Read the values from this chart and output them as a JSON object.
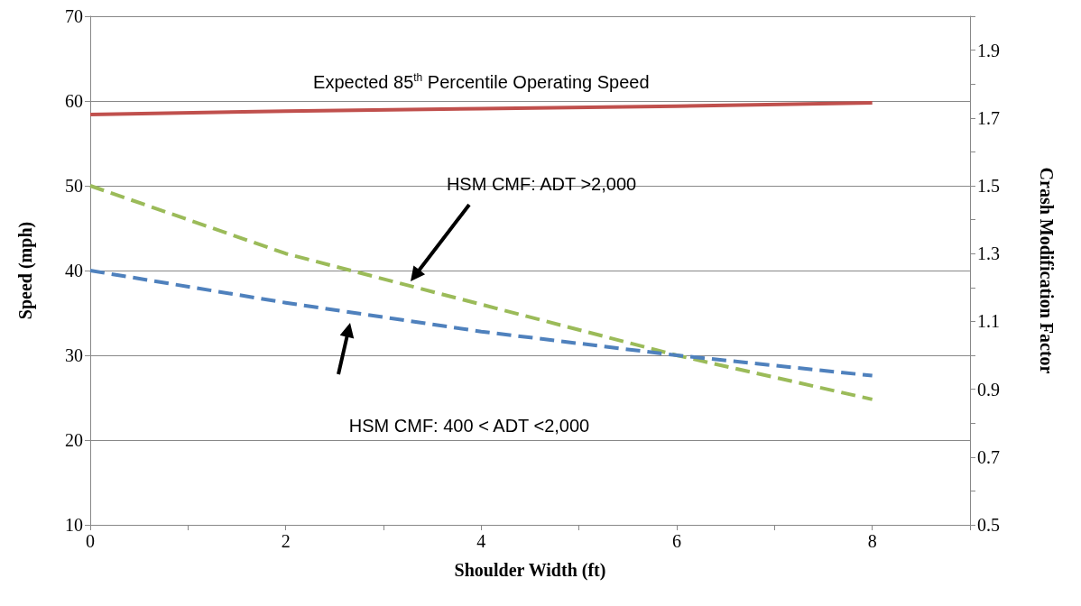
{
  "chart_data": {
    "type": "line",
    "xlabel": "Shoulder Width (ft)",
    "ylabel": "Speed (mph)",
    "y2label": "Crash Modification Factor",
    "x": [
      0,
      2,
      4,
      6,
      8
    ],
    "series": [
      {
        "name": "Expected 85$^{th}$ Percentile Operating Speed",
        "color": "#c0504d",
        "values": [
          58.4,
          58.8,
          59.1,
          59.4,
          59.8
        ],
        "line_style": "solid"
      },
      {
        "color": "#9bbb59",
        "values": [
          1.5,
          1.3,
          1.15,
          1.0,
          0.87
        ],
        "axis": "y2",
        "line_style": "dashed"
      },
      {
        "color": "#4f81bd",
        "values": [
          1.25,
          1.155,
          1.07,
          1.0,
          0.94
        ],
        "axis": "y2",
        "line_style": "dashed"
      }
    ],
    "annotations": [
      "HSM CMF: ADT >2,000",
      "HSM CMF: 400 < ADT <2,000"
    ],
    "xlim": [
      0,
      9
    ],
    "xticks": [
      0,
      {
        "value": 1,
        "label": null
      },
      2,
      {
        "value": 3,
        "label": null
      },
      4,
      {
        "value": 5,
        "label": null
      },
      6,
      {
        "value": 7,
        "label": null
      },
      8,
      {
        "value": 9,
        "label": null
      }
    ],
    "ylim": [
      10,
      70
    ],
    "yticks": [
      10,
      20,
      30,
      40,
      50,
      60,
      70
    ],
    "y2lim": [
      0.5,
      2.0
    ],
    "y2ticks": [
      0.5,
      {
        "value": 0.6,
        "label": null
      },
      0.7,
      {
        "value": 0.8,
        "label": null
      },
      0.9,
      {
        "value": 1.0,
        "label": null
      },
      1.1,
      {
        "value": 1.2,
        "label": null
      },
      1.3,
      {
        "value": 1.4,
        "label": null
      },
      1.5,
      {
        "value": 1.6,
        "label": null
      },
      1.7,
      {
        "value": 1.8,
        "label": null
      },
      1.9,
      {
        "value": 2.0,
        "label": null
      }
    ],
    "grid": "y",
    "marker": "none"
  }
}
